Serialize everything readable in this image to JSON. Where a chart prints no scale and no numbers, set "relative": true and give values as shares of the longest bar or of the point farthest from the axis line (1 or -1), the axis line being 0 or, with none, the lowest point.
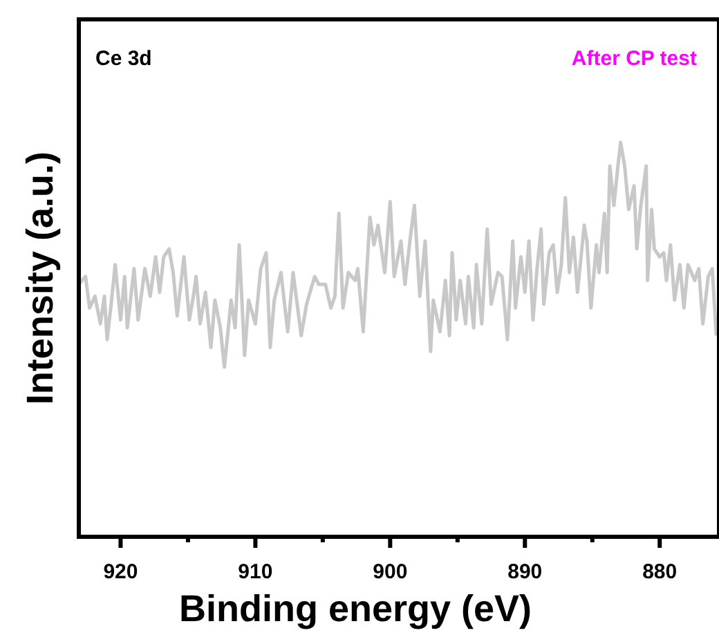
{
  "chart_data": {
    "type": "line",
    "xlabel": "Binding energy (eV)",
    "ylabel": "Intensity (a.u.)",
    "relative": true,
    "annotations": [
      "Ce 3d",
      "After CP test"
    ],
    "xlim": [
      923.1,
      875.6
    ],
    "xticks": [
      920,
      {
        "value": 915,
        "label": null
      },
      910,
      {
        "value": 905,
        "label": null
      },
      900,
      {
        "value": 895,
        "label": null
      },
      890,
      {
        "value": 885,
        "label": null
      },
      880
    ],
    "tick_labels": "x",
    "series": [
      {
        "color": "#c8c8c8",
        "x": [
          923.1,
          922.6,
          922.3,
          921.9,
          921.5,
          921.2,
          921.0,
          920.7,
          920.4,
          920.0,
          919.7,
          919.5,
          919.0,
          918.7,
          918.2,
          917.8,
          917.4,
          917.1,
          916.8,
          916.4,
          916.1,
          915.8,
          915.3,
          914.9,
          914.6,
          914.4,
          914.1,
          913.7,
          913.3,
          913.0,
          912.6,
          912.3,
          911.8,
          911.5,
          911.2,
          910.8,
          910.5,
          910.0,
          909.6,
          909.2,
          908.9,
          908.6,
          908.1,
          907.6,
          907.2,
          906.9,
          906.6,
          906.2,
          905.6,
          905.3,
          904.8,
          904.4,
          904.1,
          903.8,
          903.5,
          903.1,
          902.6,
          902.4,
          902.0,
          901.5,
          901.2,
          900.9,
          900.4,
          900.0,
          899.7,
          899.2,
          898.9,
          898.5,
          898.2,
          897.8,
          897.4,
          897.0,
          896.8,
          896.3,
          895.9,
          895.6,
          895.4,
          895.1,
          894.8,
          894.4,
          894.2,
          893.8,
          893.6,
          893.2,
          892.8,
          892.5,
          892.0,
          891.7,
          891.3,
          890.9,
          890.7,
          890.3,
          890.0,
          889.7,
          889.4,
          889.1,
          888.8,
          888.6,
          888.2,
          887.9,
          887.6,
          887.3,
          887.0,
          886.7,
          886.4,
          886.1,
          885.6,
          885.4,
          885.1,
          884.7,
          884.5,
          884.1,
          883.9,
          883.7,
          883.4,
          883.1,
          882.9,
          882.6,
          882.3,
          881.9,
          881.7,
          881.4,
          881.0,
          880.9,
          880.6,
          880.4,
          880.0,
          879.7,
          879.5,
          879.2,
          878.9,
          878.5,
          878.2,
          877.9,
          877.4,
          877.1,
          876.8,
          876.4,
          876.1,
          875.8
        ],
        "values": [
          0.64,
          0.66,
          0.58,
          0.61,
          0.54,
          0.61,
          0.5,
          0.59,
          0.69,
          0.55,
          0.66,
          0.53,
          0.68,
          0.55,
          0.68,
          0.61,
          0.71,
          0.62,
          0.71,
          0.73,
          0.67,
          0.56,
          0.71,
          0.55,
          0.61,
          0.66,
          0.54,
          0.62,
          0.48,
          0.6,
          0.53,
          0.43,
          0.6,
          0.53,
          0.74,
          0.46,
          0.6,
          0.54,
          0.68,
          0.72,
          0.48,
          0.6,
          0.67,
          0.52,
          0.67,
          0.59,
          0.51,
          0.59,
          0.66,
          0.64,
          0.64,
          0.58,
          0.61,
          0.82,
          0.58,
          0.67,
          0.65,
          0.68,
          0.52,
          0.81,
          0.74,
          0.79,
          0.67,
          0.85,
          0.66,
          0.75,
          0.64,
          0.76,
          0.84,
          0.61,
          0.75,
          0.47,
          0.6,
          0.52,
          0.65,
          0.51,
          0.72,
          0.55,
          0.65,
          0.54,
          0.66,
          0.53,
          0.69,
          0.54,
          0.78,
          0.59,
          0.67,
          0.66,
          0.5,
          0.75,
          0.58,
          0.71,
          0.62,
          0.75,
          0.55,
          0.68,
          0.78,
          0.59,
          0.72,
          0.74,
          0.62,
          0.69,
          0.86,
          0.67,
          0.76,
          0.62,
          0.79,
          0.75,
          0.58,
          0.74,
          0.67,
          0.82,
          0.67,
          0.94,
          0.84,
          0.94,
          1,
          0.94,
          0.83,
          0.89,
          0.73,
          0.84,
          0.94,
          0.65,
          0.83,
          0.73,
          0.71,
          0.72,
          0.65,
          0.74,
          0.6,
          0.69,
          0.58,
          0.69,
          0.65,
          0.68,
          0.54,
          0.66,
          0.68,
          0.51
        ]
      }
    ]
  }
}
